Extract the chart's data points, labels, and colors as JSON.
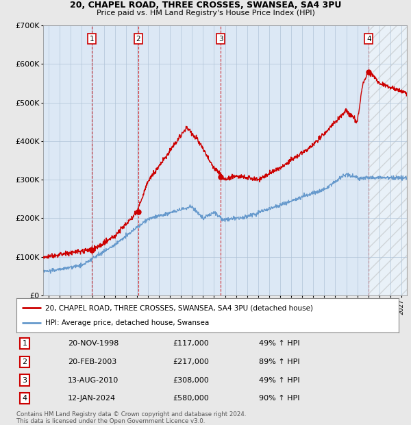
{
  "title_line1": "20, CHAPEL ROAD, THREE CROSSES, SWANSEA, SA4 3PU",
  "title_line2": "Price paid vs. HM Land Registry's House Price Index (HPI)",
  "ylim": [
    0,
    700000
  ],
  "yticks": [
    0,
    100000,
    200000,
    300000,
    400000,
    500000,
    600000,
    700000
  ],
  "ytick_labels": [
    "£0",
    "£100K",
    "£200K",
    "£300K",
    "£400K",
    "£500K",
    "£600K",
    "£700K"
  ],
  "background_color": "#e8e8e8",
  "plot_background": "#dce8f5",
  "grid_color": "#b0c4d8",
  "red_line_color": "#cc0000",
  "blue_line_color": "#6699cc",
  "sale_points": [
    {
      "label": "1",
      "year": 1998.89,
      "price": 117000
    },
    {
      "label": "2",
      "year": 2003.13,
      "price": 217000
    },
    {
      "label": "3",
      "year": 2010.62,
      "price": 308000
    },
    {
      "label": "4",
      "year": 2024.04,
      "price": 580000
    }
  ],
  "table_rows": [
    {
      "num": "1",
      "date": "20-NOV-1998",
      "price": "£117,000",
      "hpi": "49% ↑ HPI"
    },
    {
      "num": "2",
      "date": "20-FEB-2003",
      "price": "£217,000",
      "hpi": "89% ↑ HPI"
    },
    {
      "num": "3",
      "date": "13-AUG-2010",
      "price": "£308,000",
      "hpi": "49% ↑ HPI"
    },
    {
      "num": "4",
      "date": "12-JAN-2024",
      "price": "£580,000",
      "hpi": "90% ↑ HPI"
    }
  ],
  "legend_line1": "20, CHAPEL ROAD, THREE CROSSES, SWANSEA, SA4 3PU (detached house)",
  "legend_line2": "HPI: Average price, detached house, Swansea",
  "footer": "Contains HM Land Registry data © Crown copyright and database right 2024.\nThis data is licensed under the Open Government Licence v3.0.",
  "xmin": 1994.5,
  "xmax": 2027.5
}
